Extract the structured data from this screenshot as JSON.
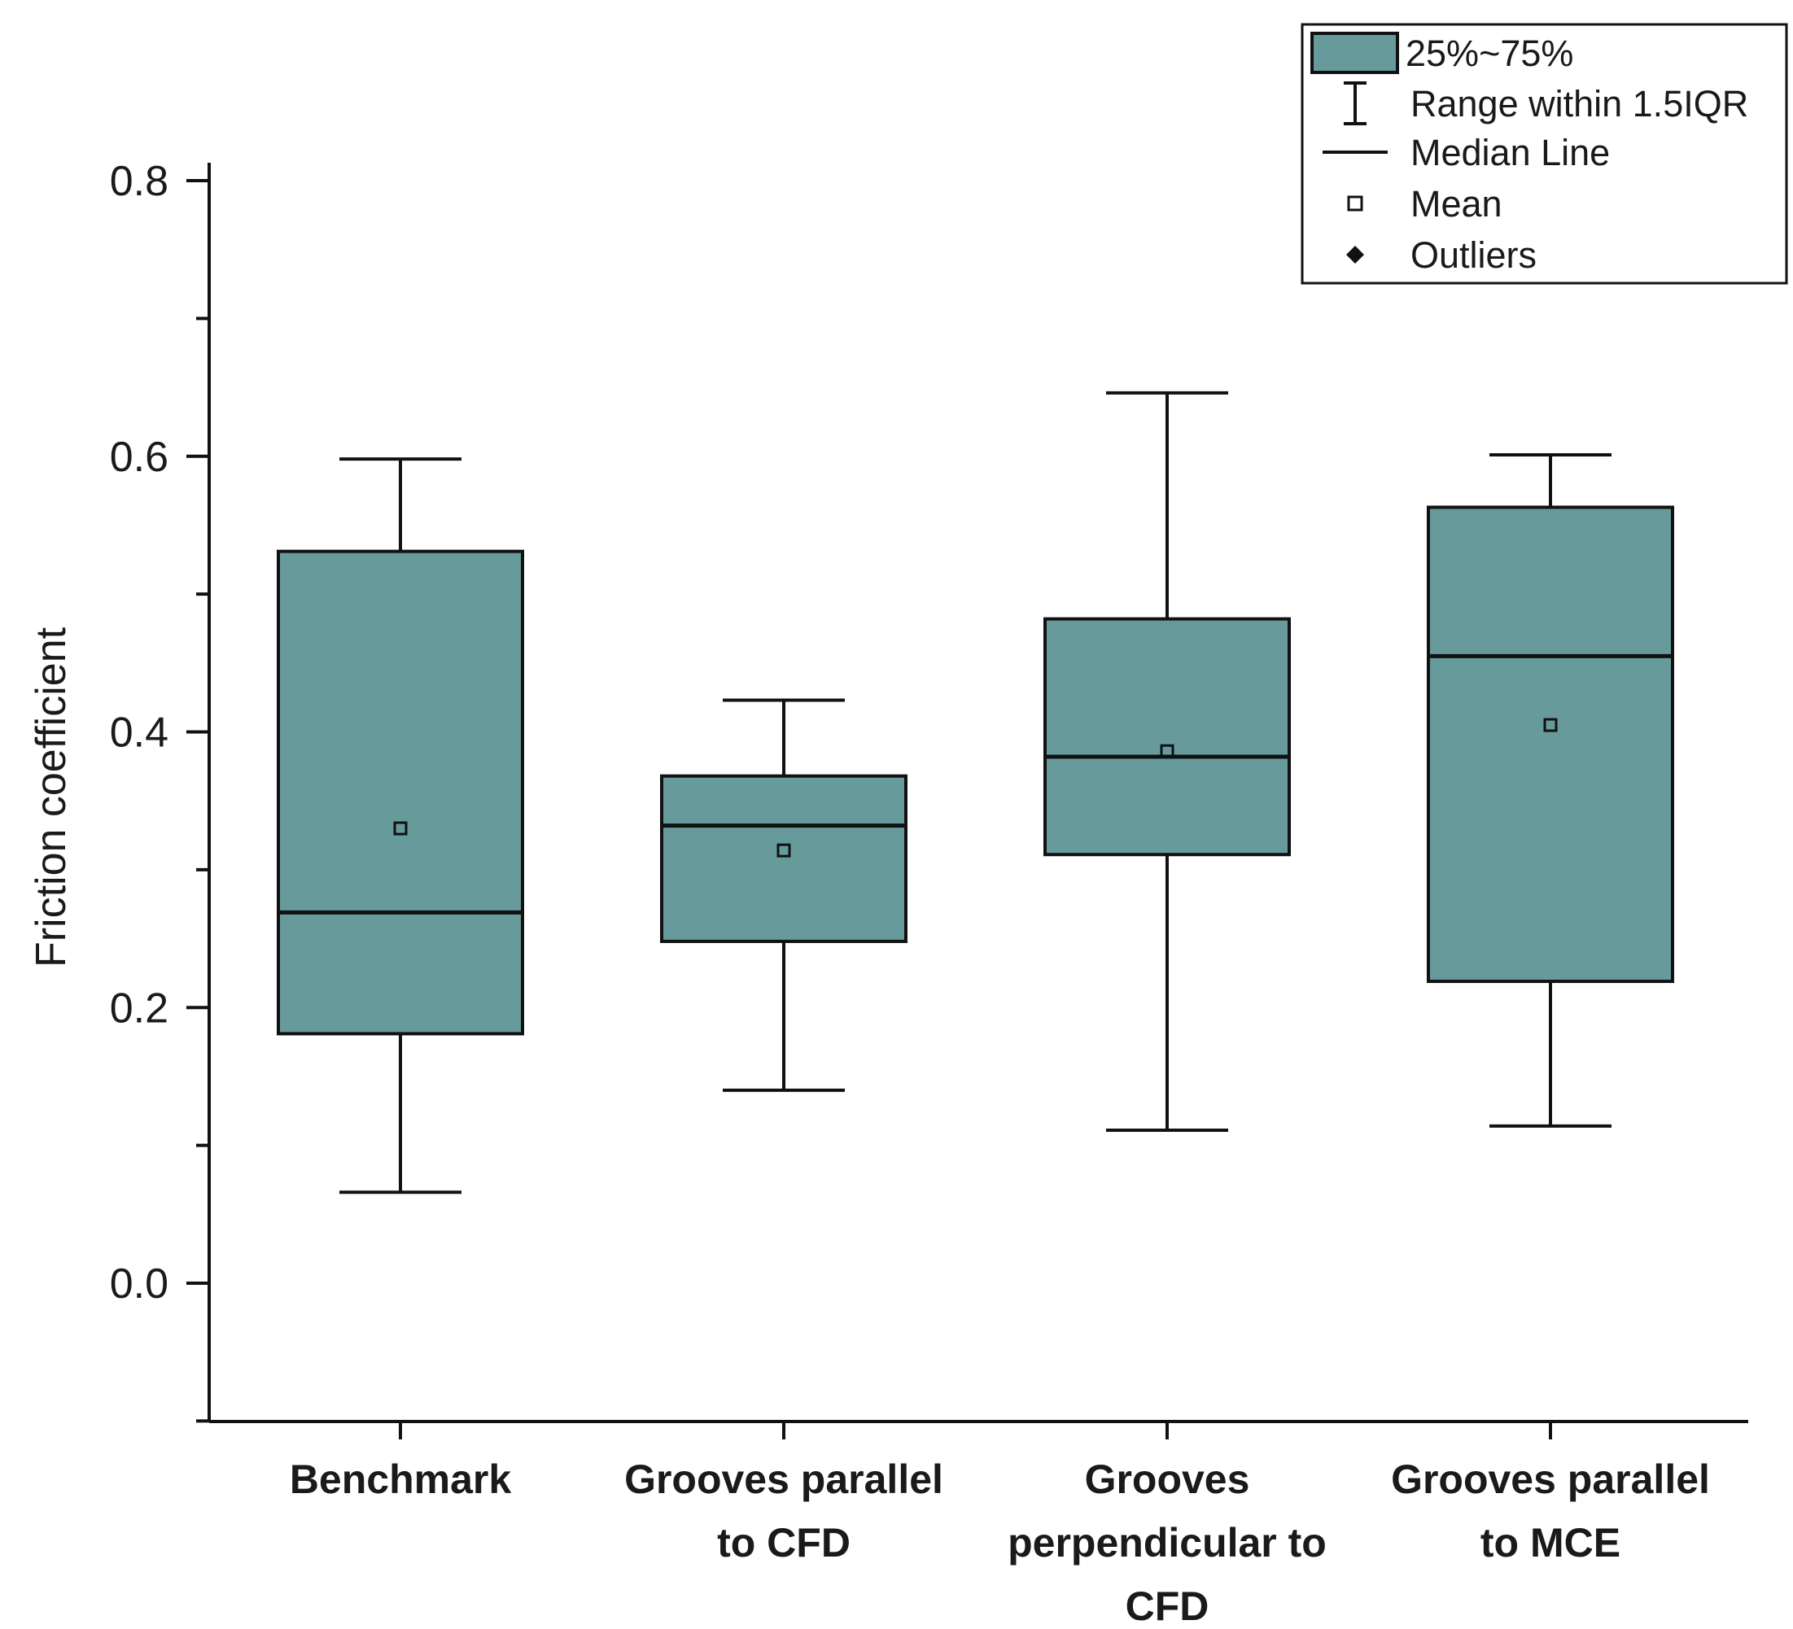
{
  "chart_data": {
    "type": "box",
    "ylabel": "Friction coefficient",
    "xlabel": "",
    "ylim": [
      -0.1,
      0.8
    ],
    "yticks": [
      0.0,
      0.2,
      0.4,
      0.6,
      0.8
    ],
    "ytick_labels": [
      "0.0",
      "0.2",
      "0.4",
      "0.6",
      "0.8"
    ],
    "minor_yticks": [
      -0.1,
      0.1,
      0.3,
      0.5,
      0.7
    ],
    "box_color": "#679b9b",
    "edge_color": "#111111",
    "categories": [
      {
        "label_lines": [
          "Benchmark"
        ],
        "whisker_low": 0.066,
        "q1": 0.181,
        "median": 0.269,
        "q3": 0.531,
        "whisker_high": 0.598,
        "mean": 0.33
      },
      {
        "label_lines": [
          "Grooves parallel",
          "to CFD"
        ],
        "whisker_low": 0.14,
        "q1": 0.248,
        "median": 0.332,
        "q3": 0.368,
        "whisker_high": 0.423,
        "mean": 0.314
      },
      {
        "label_lines": [
          "Grooves",
          "perpendicular to",
          "CFD"
        ],
        "whisker_low": 0.111,
        "q1": 0.311,
        "median": 0.382,
        "q3": 0.482,
        "whisker_high": 0.646,
        "mean": 0.386
      },
      {
        "label_lines": [
          "Grooves parallel",
          "to MCE"
        ],
        "whisker_low": 0.114,
        "q1": 0.219,
        "median": 0.455,
        "q3": 0.563,
        "whisker_high": 0.601,
        "mean": 0.405
      }
    ],
    "legend": {
      "position": "top-right",
      "entries": [
        {
          "symbol": "box",
          "label": "25%~75%"
        },
        {
          "symbol": "whisker",
          "label": "Range within 1.5IQR"
        },
        {
          "symbol": "line",
          "label": "Median Line"
        },
        {
          "symbol": "open-square",
          "label": "Mean"
        },
        {
          "symbol": "diamond",
          "label": "Outliers"
        }
      ]
    }
  }
}
